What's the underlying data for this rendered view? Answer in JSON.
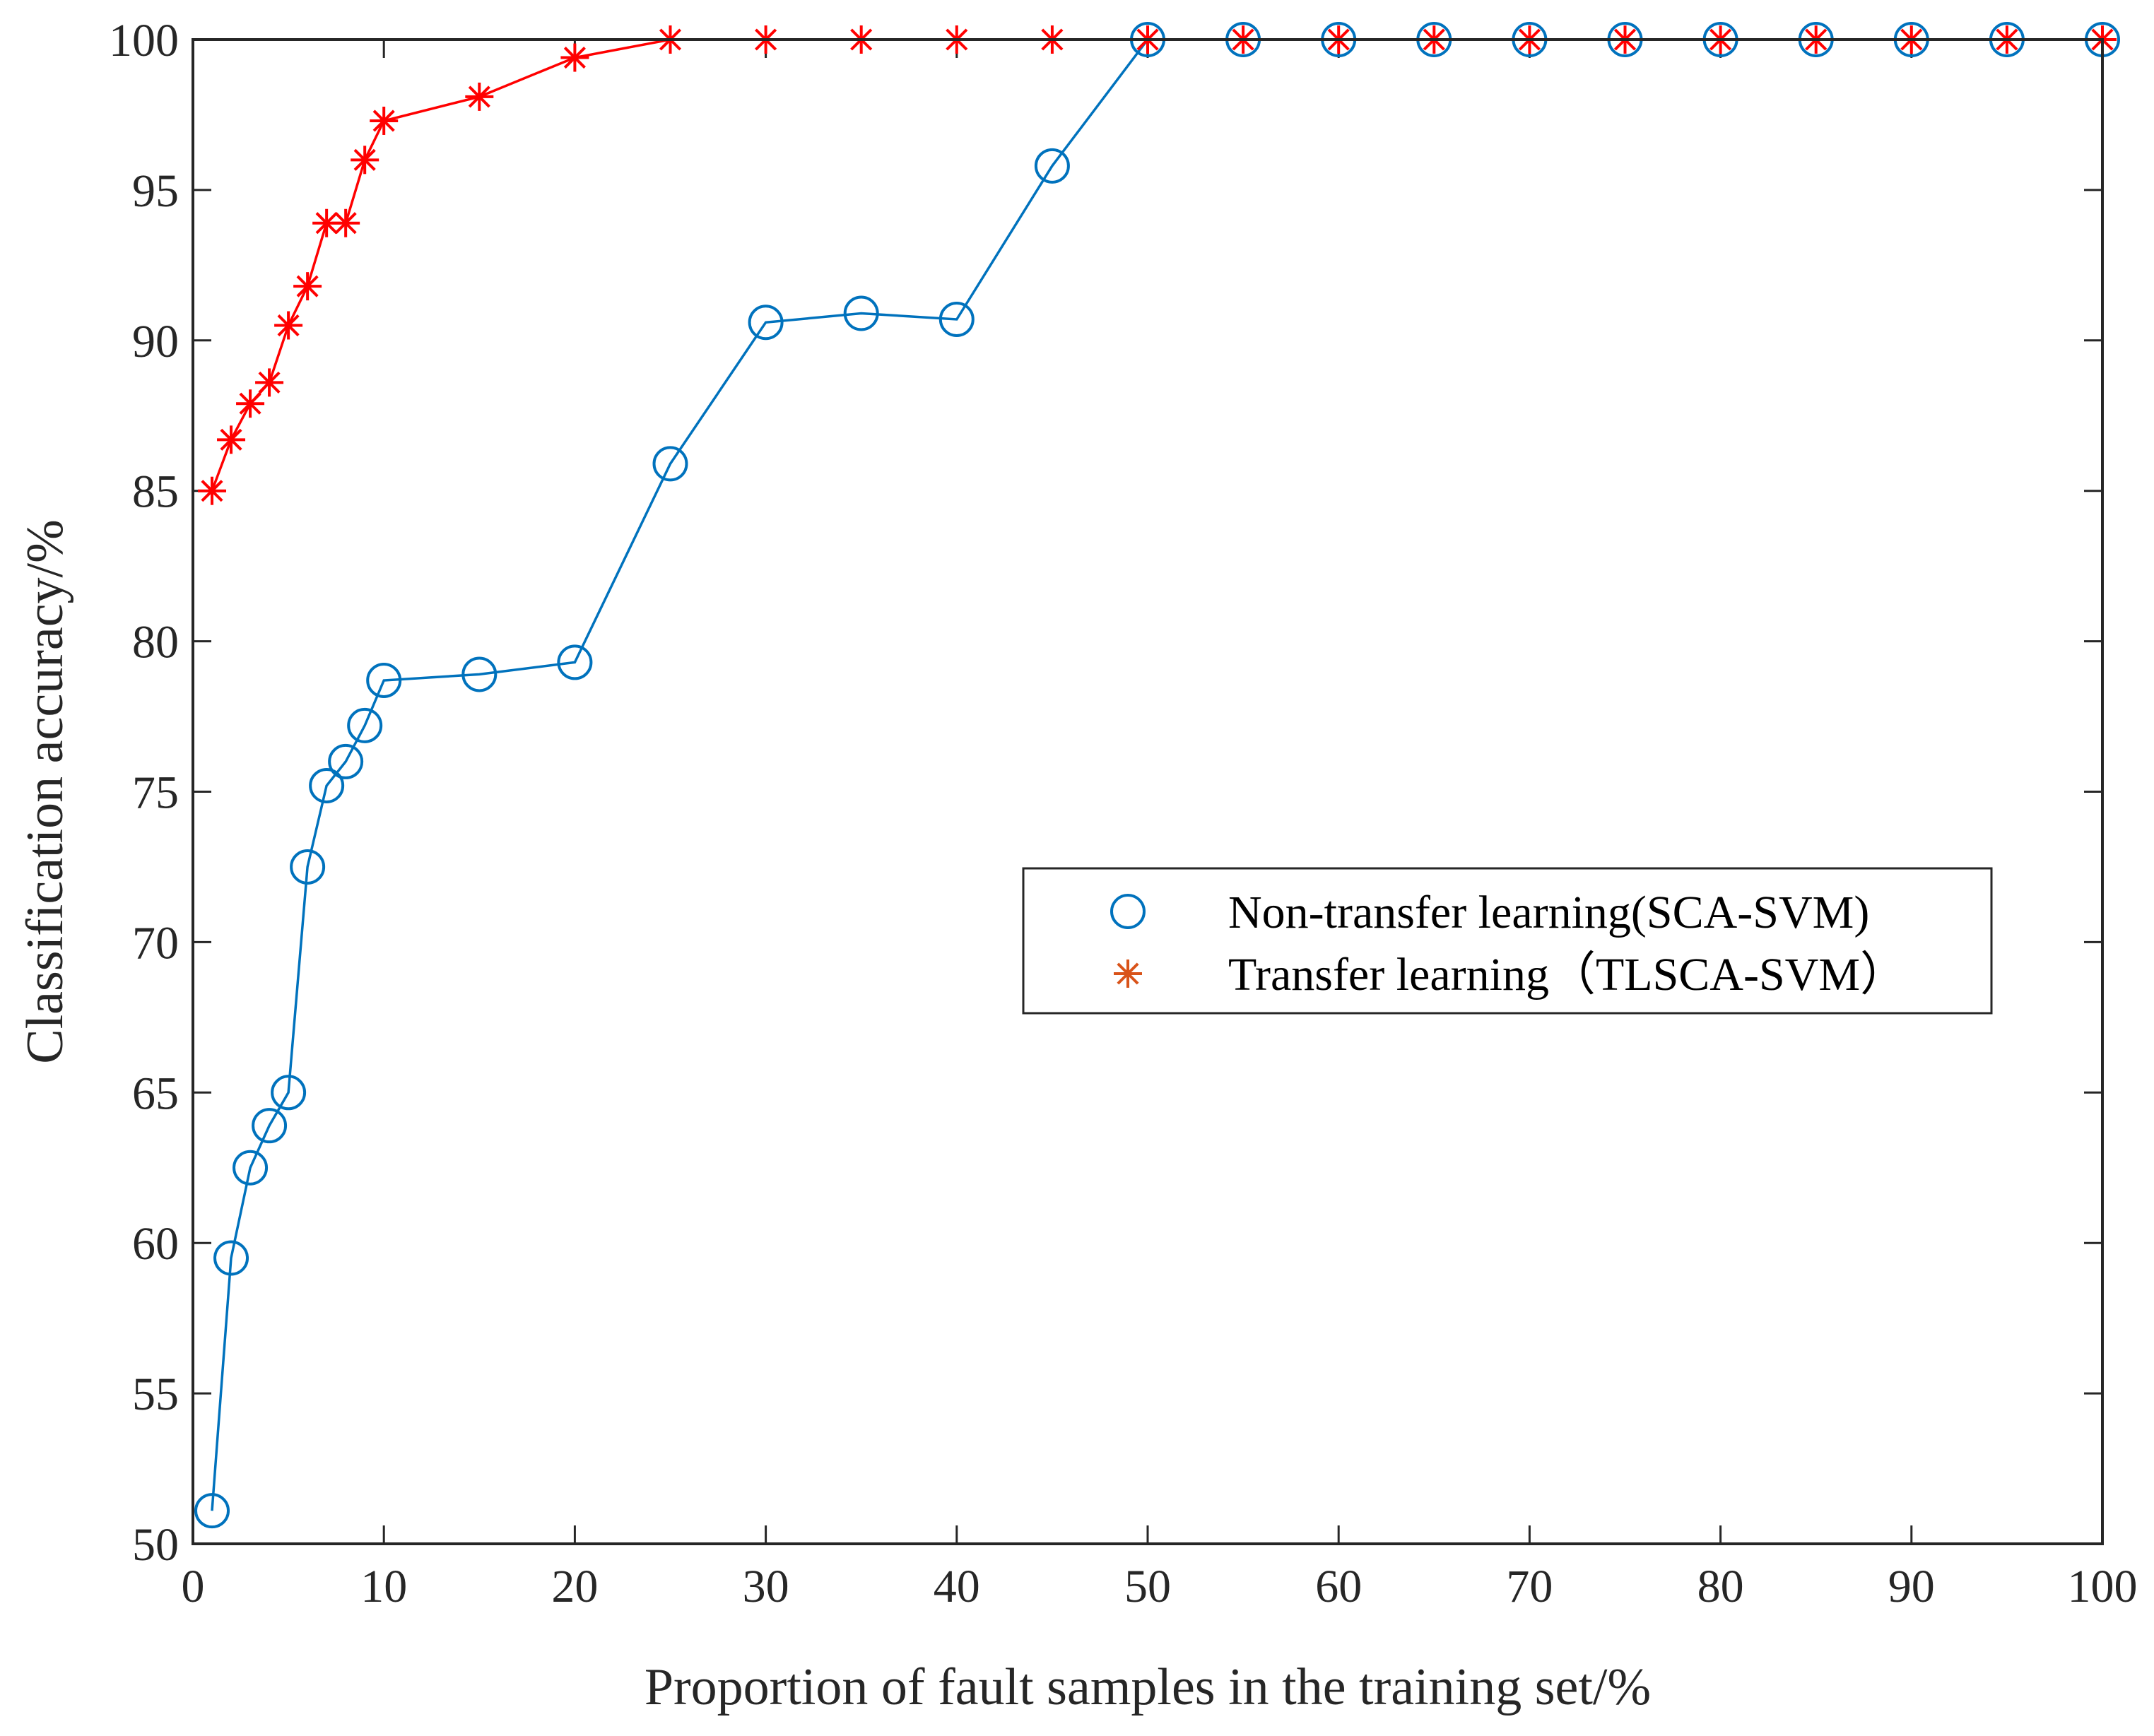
{
  "chart_data": {
    "type": "line",
    "title": "",
    "xlabel": "Proportion of fault samples in the training set/%",
    "ylabel": "Classification accuracy/%",
    "xlim": [
      0,
      100
    ],
    "ylim": [
      50,
      100
    ],
    "xticks": [
      0,
      10,
      20,
      30,
      40,
      50,
      60,
      70,
      80,
      90,
      100
    ],
    "yticks": [
      50,
      55,
      60,
      65,
      70,
      75,
      80,
      85,
      90,
      95,
      100
    ],
    "grid": false,
    "legend_position": "center-right",
    "series": [
      {
        "name": "Non-transfer learning(SCA-SVM)",
        "marker": "circle",
        "color": "#0072BD",
        "x": [
          1,
          2,
          3,
          4,
          5,
          6,
          7,
          8,
          9,
          10,
          15,
          20,
          25,
          30,
          35,
          40,
          45,
          50,
          55,
          60,
          65,
          70,
          75,
          80,
          85,
          90,
          95,
          100
        ],
        "values": [
          51.1,
          59.5,
          62.5,
          63.9,
          65.0,
          72.5,
          75.2,
          76.0,
          77.2,
          78.7,
          78.9,
          79.3,
          85.9,
          90.6,
          90.9,
          90.7,
          95.8,
          100,
          100,
          100,
          100,
          100,
          100,
          100,
          100,
          100,
          100,
          100
        ]
      },
      {
        "name": "Transfer learning（TLSCA-SVM）",
        "marker": "asterisk",
        "color": "#FF0000",
        "legend_color": "#D95319",
        "x": [
          1,
          2,
          3,
          4,
          5,
          6,
          7,
          8,
          9,
          10,
          15,
          20,
          25,
          30,
          35,
          40,
          45,
          50,
          55,
          60,
          65,
          70,
          75,
          80,
          85,
          90,
          95,
          100
        ],
        "values": [
          85.0,
          86.7,
          87.9,
          88.6,
          90.5,
          91.8,
          93.9,
          93.9,
          96.0,
          97.3,
          98.1,
          99.4,
          100,
          100,
          100,
          100,
          100,
          100,
          100,
          100,
          100,
          100,
          100,
          100,
          100,
          100,
          100,
          100
        ]
      }
    ]
  }
}
